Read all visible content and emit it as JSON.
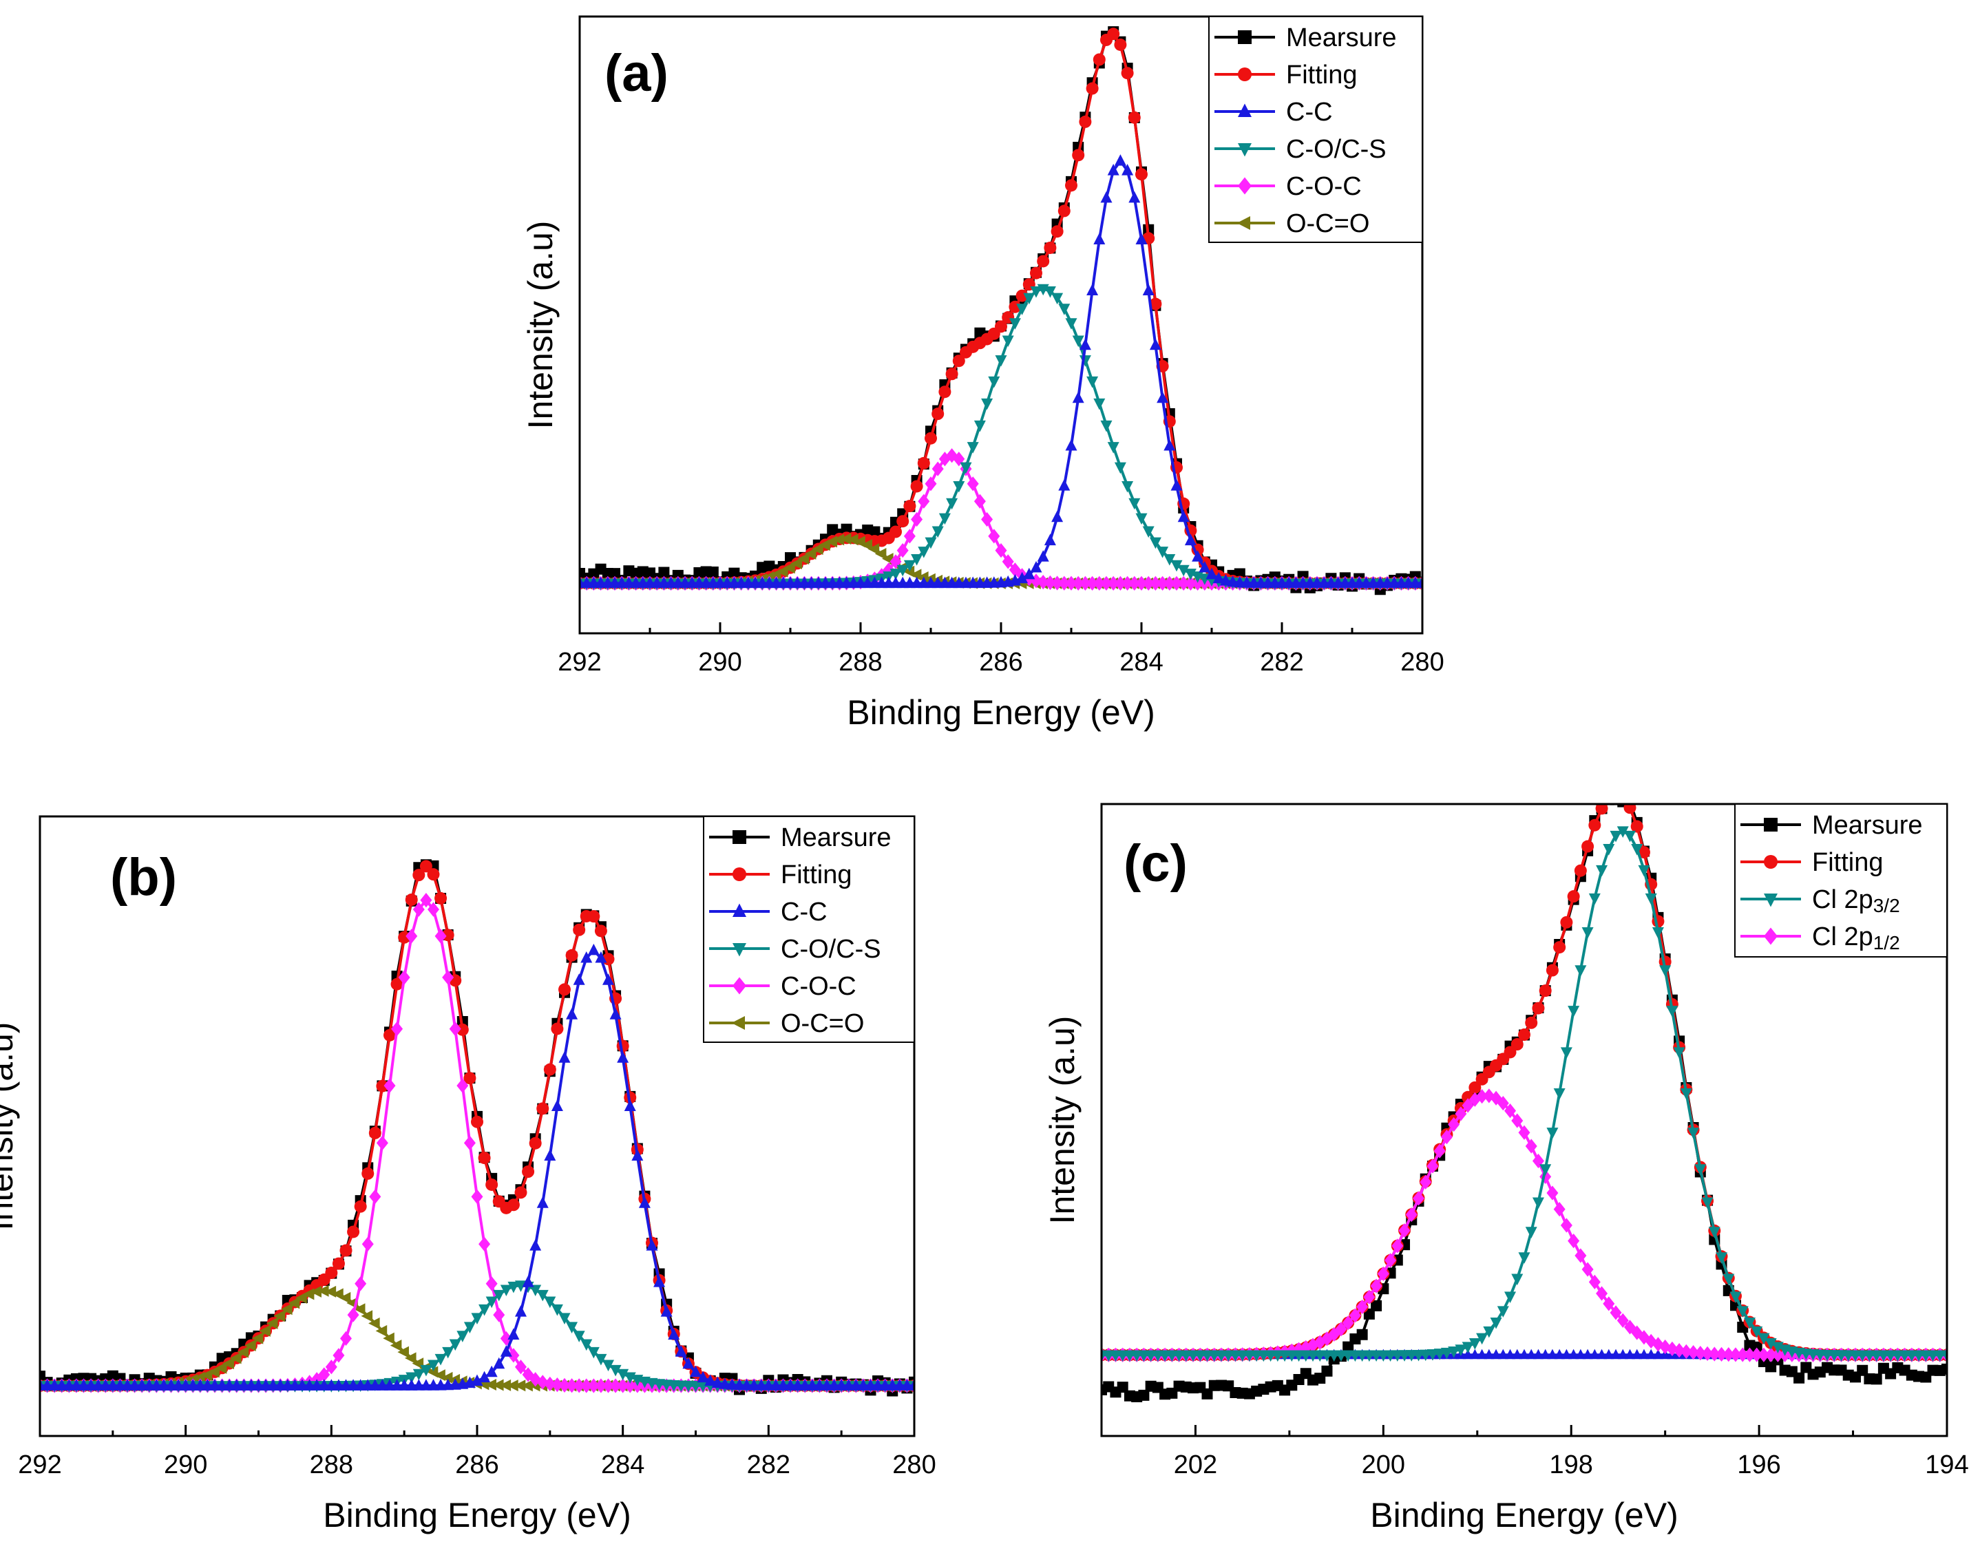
{
  "chart_data": [
    {
      "type": "line",
      "panel_label": "(a)",
      "title": "",
      "xlabel": "Binding Energy (eV)",
      "ylabel": "Intensity (a.u)",
      "xlim": [
        292,
        280
      ],
      "xticks": [
        292,
        290,
        288,
        286,
        284,
        282,
        280
      ],
      "ylim": [
        -0.09,
        1.02
      ],
      "grid": false,
      "legend_position": "top-right",
      "series": [
        {
          "name": "Mearsure",
          "color": "#000000",
          "marker": "square",
          "role": "measured",
          "noise": 0.012,
          "baseline_tilt": 0.014
        },
        {
          "name": "Fitting",
          "color": "#ee1111",
          "marker": "circle",
          "role": "fit"
        },
        {
          "name": "C-C",
          "color": "#1a1ae0",
          "marker": "triangle-up",
          "role": "component",
          "center": 284.3,
          "amplitude": 0.76,
          "fwhm": 1.1
        },
        {
          "name": "C-O/C-S",
          "color": "#0a8a8a",
          "marker": "triangle-down",
          "role": "component",
          "center": 285.4,
          "amplitude": 0.53,
          "fwhm": 1.9
        },
        {
          "name": "C-O-C",
          "color": "#ff22ff",
          "marker": "diamond",
          "role": "component",
          "center": 286.7,
          "amplitude": 0.23,
          "fwhm": 1.0
        },
        {
          "name": "O-C=O",
          "color": "#7a7a10",
          "marker": "triangle-left",
          "role": "component",
          "center": 288.2,
          "amplitude": 0.08,
          "fwhm": 1.3
        }
      ]
    },
    {
      "type": "line",
      "panel_label": "(b)",
      "title": "",
      "xlabel": "Binding Energy (eV)",
      "ylabel": "Intensity (a.u)",
      "xlim": [
        292,
        280
      ],
      "xticks": [
        292,
        290,
        288,
        286,
        284,
        282,
        280
      ],
      "ylim": [
        -0.09,
        1.02
      ],
      "grid": false,
      "legend_position": "top-right",
      "series": [
        {
          "name": "Mearsure",
          "color": "#000000",
          "marker": "square",
          "role": "measured",
          "noise": 0.01,
          "baseline_tilt": 0.01
        },
        {
          "name": "Fitting",
          "color": "#ee1111",
          "marker": "circle",
          "role": "fit"
        },
        {
          "name": "C-C",
          "color": "#1a1ae0",
          "marker": "triangle-up",
          "role": "component",
          "center": 284.4,
          "amplitude": 0.78,
          "fwhm": 1.25
        },
        {
          "name": "C-O/C-S",
          "color": "#0a8a8a",
          "marker": "triangle-down",
          "role": "component",
          "center": 285.4,
          "amplitude": 0.18,
          "fwhm": 1.6
        },
        {
          "name": "C-O-C",
          "color": "#ff22ff",
          "marker": "diamond",
          "role": "component",
          "center": 286.7,
          "amplitude": 0.87,
          "fwhm": 1.2
        },
        {
          "name": "O-C=O",
          "color": "#7a7a10",
          "marker": "triangle-left",
          "role": "component",
          "center": 288.1,
          "amplitude": 0.17,
          "fwhm": 1.8
        }
      ]
    },
    {
      "type": "line",
      "panel_label": "(c)",
      "title": "",
      "xlabel": "Binding Energy (eV)",
      "ylabel": "Intensity (a.u)",
      "xlim": [
        203,
        194
      ],
      "xticks": [
        202,
        200,
        198,
        196,
        194
      ],
      "ylim": [
        -0.15,
        1.02
      ],
      "grid": false,
      "legend_position": "top-right",
      "series": [
        {
          "name": "Mearsure",
          "color": "#000000",
          "marker": "square",
          "role": "measured",
          "noise": 0.012,
          "baseline_left": -0.07,
          "baseline_right": -0.03
        },
        {
          "name": "Fitting",
          "color": "#ee1111",
          "marker": "circle",
          "role": "fit"
        },
        {
          "name": "Cl 2p3/2",
          "color": "#0a8a8a",
          "marker": "triangle-down",
          "role": "component",
          "center": 197.45,
          "amplitude": 0.97,
          "fwhm": 1.35
        },
        {
          "name": "Cl 2p1/2",
          "color": "#ff22ff",
          "marker": "diamond",
          "role": "component",
          "center": 198.9,
          "amplitude": 0.48,
          "fwhm": 1.7
        },
        {
          "name": "",
          "color": "#1a1ae0",
          "marker": "triangle-up",
          "role": "baseline",
          "legend": false
        }
      ]
    }
  ]
}
